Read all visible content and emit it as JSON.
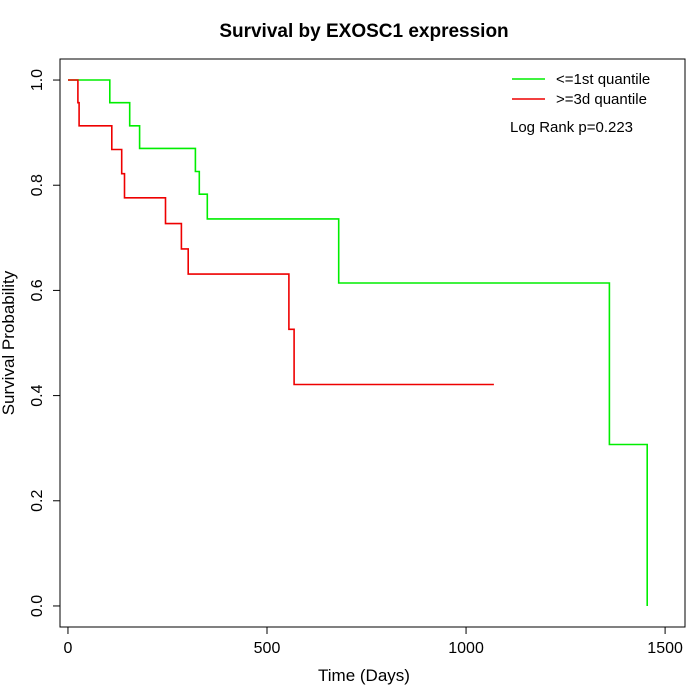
{
  "chart_data": {
    "type": "line",
    "title": "Survival by EXOSC1 expression",
    "xlabel": "Time (Days)",
    "ylabel": "Survival Probability",
    "xlim": [
      -20,
      1550
    ],
    "ylim": [
      -0.04,
      1.04
    ],
    "x_ticks": [
      0,
      500,
      1000,
      1500
    ],
    "y_ticks": [
      0.0,
      0.2,
      0.4,
      0.6,
      0.8,
      1.0
    ],
    "x_tick_labels": [
      "0",
      "500",
      "1000",
      "1500"
    ],
    "y_tick_labels": [
      "0.0",
      "0.2",
      "0.4",
      "0.6",
      "0.8",
      "1.0"
    ],
    "grid": false,
    "legend_position": "top-right",
    "annotation": "Log Rank p=0.223",
    "series": [
      {
        "name": "<=1st quantile",
        "color": "#00ee00",
        "x": [
          0,
          105,
          105,
          155,
          155,
          180,
          180,
          320,
          320,
          330,
          330,
          350,
          350,
          680,
          680,
          1360,
          1360,
          1455,
          1455
        ],
        "y": [
          1.0,
          1.0,
          0.957,
          0.957,
          0.913,
          0.913,
          0.87,
          0.87,
          0.826,
          0.826,
          0.783,
          0.783,
          0.736,
          0.736,
          0.614,
          0.614,
          0.307,
          0.307,
          0.0
        ]
      },
      {
        "name": ">=3d quantile",
        "color": "#ee0000",
        "x": [
          0,
          25,
          25,
          28,
          28,
          110,
          110,
          135,
          135,
          142,
          142,
          245,
          245,
          285,
          285,
          302,
          302,
          555,
          555,
          568,
          568,
          1070
        ],
        "y": [
          1.0,
          1.0,
          0.957,
          0.957,
          0.913,
          0.913,
          0.868,
          0.868,
          0.822,
          0.822,
          0.776,
          0.776,
          0.727,
          0.727,
          0.679,
          0.679,
          0.631,
          0.631,
          0.526,
          0.526,
          0.421,
          0.421
        ]
      }
    ]
  }
}
